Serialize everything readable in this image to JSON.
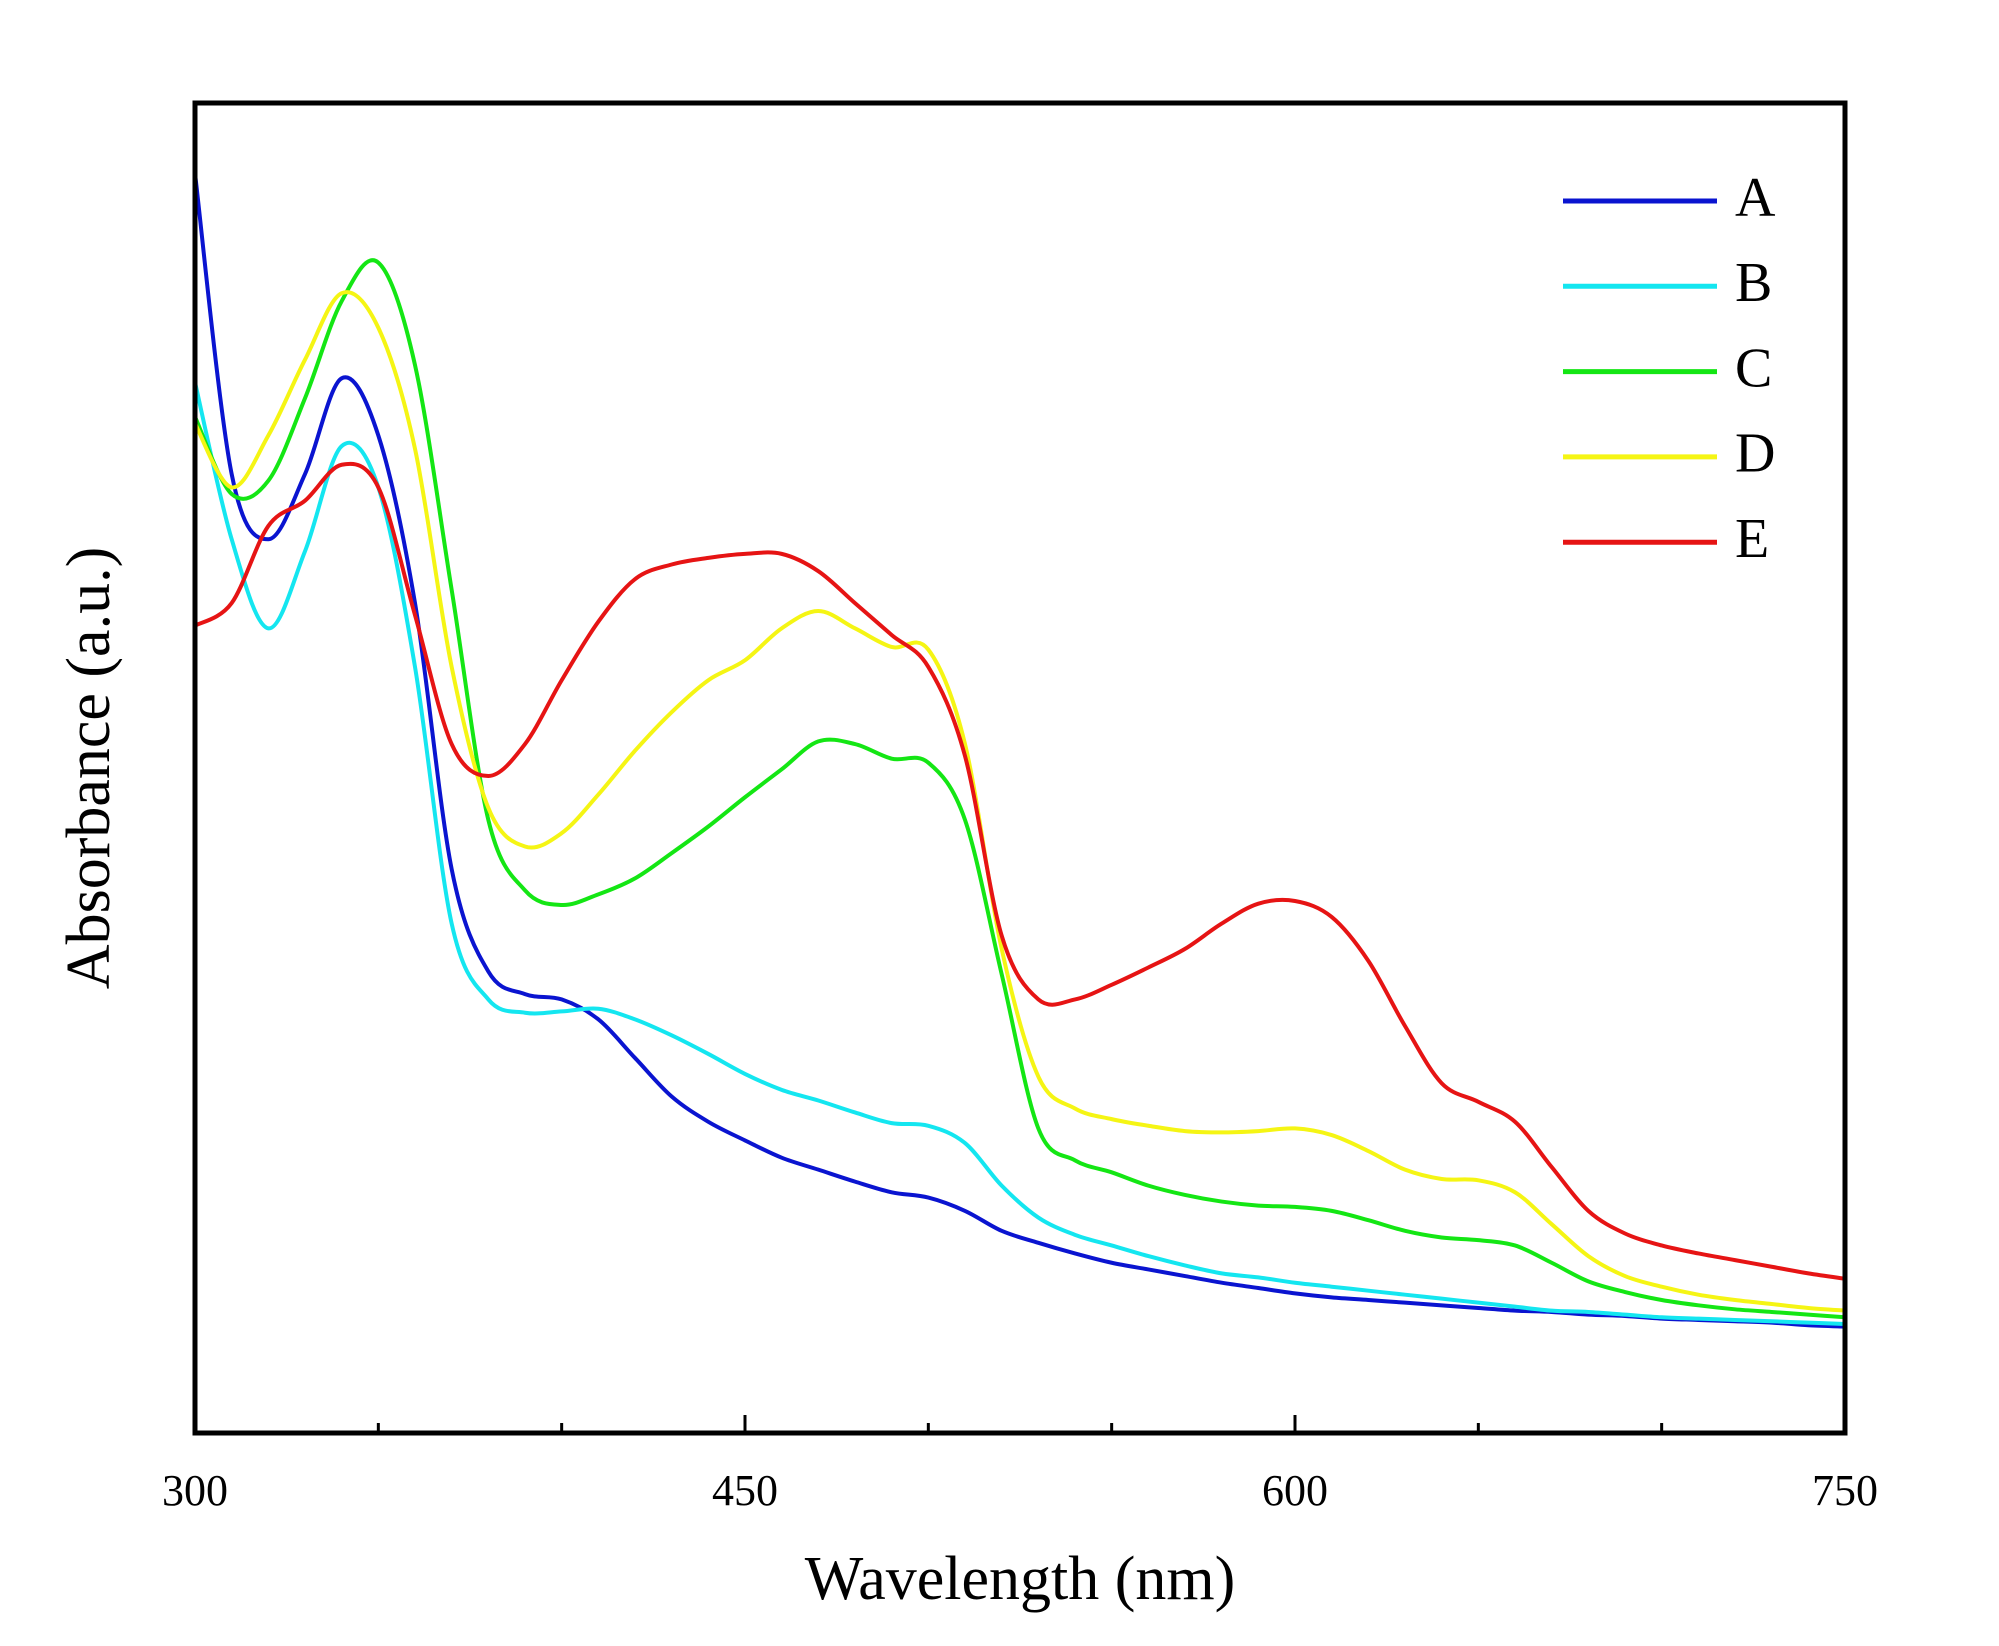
{
  "chart_data": {
    "type": "line",
    "x_label": "Wavelength (nm)",
    "y_label": "Absorbance (a.u.)",
    "x": [
      300,
      310,
      320,
      330,
      340,
      350,
      360,
      370,
      380,
      390,
      400,
      410,
      420,
      430,
      440,
      450,
      460,
      470,
      480,
      490,
      500,
      510,
      520,
      530,
      540,
      550,
      560,
      570,
      580,
      590,
      600,
      610,
      620,
      630,
      640,
      650,
      660,
      670,
      680,
      690,
      700,
      710,
      720,
      730,
      740,
      750
    ],
    "xlim": [
      300,
      750
    ],
    "xticks": [
      300,
      450,
      600,
      750
    ],
    "xminor_ticks": [
      350,
      400,
      500,
      550,
      650,
      700
    ],
    "ylim": [
      0,
      1
    ],
    "legend": "upper right",
    "series": [
      {
        "name": "A",
        "color": "#0a14d0",
        "values": [
          0.947,
          0.721,
          0.672,
          0.721,
          0.793,
          0.75,
          0.624,
          0.424,
          0.347,
          0.33,
          0.326,
          0.311,
          0.282,
          0.253,
          0.234,
          0.22,
          0.207,
          0.198,
          0.189,
          0.181,
          0.177,
          0.167,
          0.152,
          0.143,
          0.135,
          0.128,
          0.123,
          0.118,
          0.113,
          0.109,
          0.105,
          0.102,
          0.1,
          0.098,
          0.096,
          0.094,
          0.092,
          0.091,
          0.089,
          0.088,
          0.086,
          0.085,
          0.084,
          0.083,
          0.081,
          0.08
        ]
      },
      {
        "name": "B",
        "color": "#14e6f0",
        "values": [
          0.79,
          0.672,
          0.605,
          0.663,
          0.742,
          0.711,
          0.576,
          0.383,
          0.326,
          0.316,
          0.317,
          0.319,
          0.311,
          0.299,
          0.285,
          0.27,
          0.258,
          0.25,
          0.241,
          0.233,
          0.231,
          0.218,
          0.186,
          0.162,
          0.149,
          0.141,
          0.133,
          0.126,
          0.12,
          0.117,
          0.113,
          0.11,
          0.107,
          0.104,
          0.101,
          0.098,
          0.095,
          0.092,
          0.091,
          0.089,
          0.087,
          0.086,
          0.085,
          0.084,
          0.083,
          0.082
        ]
      },
      {
        "name": "C",
        "color": "#14e614",
        "values": [
          0.764,
          0.706,
          0.716,
          0.778,
          0.851,
          0.88,
          0.803,
          0.634,
          0.461,
          0.408,
          0.397,
          0.405,
          0.417,
          0.436,
          0.456,
          0.478,
          0.499,
          0.52,
          0.518,
          0.507,
          0.504,
          0.461,
          0.345,
          0.229,
          0.205,
          0.196,
          0.186,
          0.179,
          0.174,
          0.171,
          0.17,
          0.167,
          0.16,
          0.152,
          0.147,
          0.145,
          0.141,
          0.128,
          0.114,
          0.106,
          0.1,
          0.096,
          0.093,
          0.091,
          0.089,
          0.087
        ]
      },
      {
        "name": "D",
        "color": "#f5f514",
        "values": [
          0.759,
          0.711,
          0.75,
          0.807,
          0.857,
          0.831,
          0.74,
          0.576,
          0.47,
          0.441,
          0.451,
          0.48,
          0.513,
          0.542,
          0.566,
          0.581,
          0.605,
          0.618,
          0.605,
          0.591,
          0.589,
          0.518,
          0.364,
          0.268,
          0.244,
          0.236,
          0.231,
          0.227,
          0.226,
          0.227,
          0.229,
          0.224,
          0.212,
          0.198,
          0.191,
          0.19,
          0.181,
          0.157,
          0.133,
          0.118,
          0.11,
          0.104,
          0.1,
          0.097,
          0.094,
          0.092
        ]
      },
      {
        "name": "E",
        "color": "#e61414",
        "values": [
          0.607,
          0.624,
          0.682,
          0.701,
          0.728,
          0.711,
          0.615,
          0.518,
          0.494,
          0.518,
          0.566,
          0.61,
          0.642,
          0.653,
          0.658,
          0.661,
          0.661,
          0.648,
          0.624,
          0.6,
          0.576,
          0.509,
          0.374,
          0.326,
          0.326,
          0.337,
          0.35,
          0.364,
          0.383,
          0.398,
          0.4,
          0.388,
          0.355,
          0.306,
          0.263,
          0.249,
          0.234,
          0.2,
          0.167,
          0.15,
          0.141,
          0.135,
          0.13,
          0.125,
          0.12,
          0.116
        ]
      }
    ]
  }
}
